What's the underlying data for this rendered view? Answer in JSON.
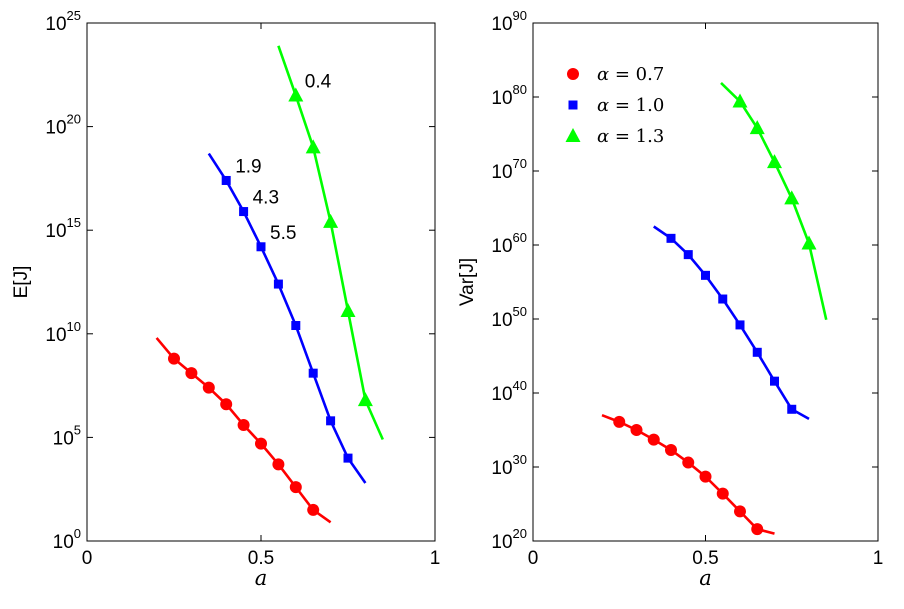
{
  "chart_data": [
    {
      "type": "line",
      "title": "",
      "xlabel": "a",
      "ylabel": "E[J]",
      "yscale": "log",
      "xlim": [
        0,
        1
      ],
      "ylim_exp": [
        0,
        25
      ],
      "xticks": [
        "0",
        "0.5",
        "1"
      ],
      "yticks": [
        {
          "base": "10",
          "exp": "0"
        },
        {
          "base": "10",
          "exp": "5"
        },
        {
          "base": "10",
          "exp": "10"
        },
        {
          "base": "10",
          "exp": "15"
        },
        {
          "base": "10",
          "exp": "20"
        },
        {
          "base": "10",
          "exp": "25"
        }
      ],
      "series": [
        {
          "name": "α = 0.7",
          "color": "#ff0000",
          "marker": "circle",
          "line_x": [
            0.2,
            0.7
          ],
          "line_y_exp": [
            9.8,
            0.9
          ],
          "x": [
            0.25,
            0.3,
            0.35,
            0.4,
            0.45,
            0.5,
            0.55,
            0.6,
            0.65
          ],
          "y_exp": [
            8.8,
            8.1,
            7.4,
            6.6,
            5.6,
            4.7,
            3.7,
            2.6,
            1.5
          ]
        },
        {
          "name": "α = 1.0",
          "color": "#0000ff",
          "marker": "square",
          "line_x": [
            0.35,
            0.8
          ],
          "line_y_exp": [
            18.7,
            2.8
          ],
          "x": [
            0.4,
            0.45,
            0.5,
            0.55,
            0.6,
            0.65,
            0.7,
            0.75
          ],
          "y_exp": [
            17.4,
            15.9,
            14.2,
            12.4,
            10.4,
            8.1,
            5.8,
            4.0
          ],
          "point_labels": [
            "1.9",
            "4.3",
            "5.5",
            "",
            "",
            "",
            "",
            ""
          ]
        },
        {
          "name": "α = 1.3",
          "color": "#00ff00",
          "marker": "triangle",
          "line_x": [
            0.55,
            0.85
          ],
          "line_y_exp": [
            23.9,
            4.9
          ],
          "x": [
            0.6,
            0.65,
            0.7,
            0.75,
            0.8
          ],
          "y_exp": [
            21.5,
            19.0,
            15.4,
            11.1,
            6.8
          ],
          "point_labels": [
            "0.4",
            "",
            "",
            "",
            ""
          ]
        }
      ]
    },
    {
      "type": "line",
      "title": "",
      "xlabel": "a",
      "ylabel": "Var[J]",
      "yscale": "log",
      "xlim": [
        0,
        1
      ],
      "ylim_exp": [
        20,
        90
      ],
      "xticks": [
        "0",
        "0.5",
        "1"
      ],
      "yticks": [
        {
          "base": "10",
          "exp": "20"
        },
        {
          "base": "10",
          "exp": "30"
        },
        {
          "base": "10",
          "exp": "40"
        },
        {
          "base": "10",
          "exp": "50"
        },
        {
          "base": "10",
          "exp": "60"
        },
        {
          "base": "10",
          "exp": "70"
        },
        {
          "base": "10",
          "exp": "80"
        },
        {
          "base": "10",
          "exp": "90"
        }
      ],
      "legend": {
        "placement": "top-left",
        "entries": [
          {
            "symbol": "α",
            "eq": " = 0.7"
          },
          {
            "symbol": "α",
            "eq": " = 1.0"
          },
          {
            "symbol": "α",
            "eq": " = 1.3"
          }
        ]
      },
      "series": [
        {
          "name": "α = 0.7",
          "color": "#ff0000",
          "marker": "circle",
          "line_x": [
            0.2,
            0.7
          ],
          "line_y_exp": [
            37.0,
            21.0
          ],
          "x": [
            0.25,
            0.3,
            0.35,
            0.4,
            0.45,
            0.5,
            0.55,
            0.6,
            0.65
          ],
          "y_exp": [
            36.1,
            35.0,
            33.7,
            32.3,
            30.6,
            28.7,
            26.4,
            24.0,
            21.6
          ]
        },
        {
          "name": "α = 1.0",
          "color": "#0000ff",
          "marker": "square",
          "line_x": [
            0.35,
            0.8
          ],
          "line_y_exp": [
            62.5,
            36.5
          ],
          "x": [
            0.4,
            0.45,
            0.5,
            0.55,
            0.6,
            0.65,
            0.7,
            0.75
          ],
          "y_exp": [
            60.9,
            58.7,
            55.9,
            52.7,
            49.2,
            45.5,
            41.6,
            37.8
          ]
        },
        {
          "name": "α = 1.3",
          "color": "#00ff00",
          "marker": "triangle",
          "line_x": [
            0.545,
            0.85
          ],
          "line_y_exp": [
            81.9,
            49.9
          ],
          "x": [
            0.6,
            0.65,
            0.7,
            0.75,
            0.8
          ],
          "y_exp": [
            79.4,
            75.8,
            71.2,
            66.3,
            60.2
          ]
        }
      ]
    }
  ]
}
